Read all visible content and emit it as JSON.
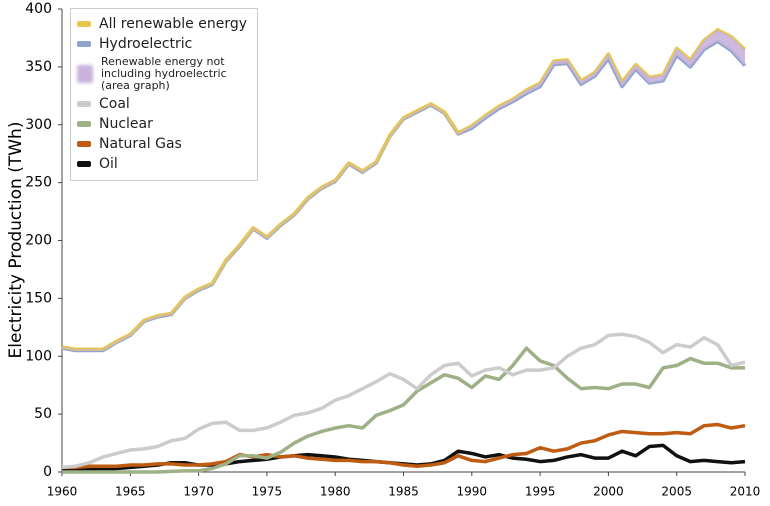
{
  "chart_data": {
    "type": "line",
    "y_label": "Electricity Production (TWh)",
    "x": [
      1960,
      1961,
      1962,
      1963,
      1964,
      1965,
      1966,
      1967,
      1968,
      1969,
      1970,
      1971,
      1972,
      1973,
      1974,
      1975,
      1976,
      1977,
      1978,
      1979,
      1980,
      1981,
      1982,
      1983,
      1984,
      1985,
      1986,
      1987,
      1988,
      1989,
      1990,
      1991,
      1992,
      1993,
      1994,
      1995,
      1996,
      1997,
      1998,
      1999,
      2000,
      2001,
      2002,
      2003,
      2004,
      2005,
      2006,
      2007,
      2008,
      2009,
      2010
    ],
    "xlim": [
      1960,
      2010
    ],
    "xticks": [
      1960,
      1965,
      1970,
      1975,
      1980,
      1985,
      1990,
      1995,
      2000,
      2005,
      2010
    ],
    "ylim": [
      0,
      400
    ],
    "yticks": [
      0,
      50,
      100,
      150,
      200,
      250,
      300,
      350,
      400
    ],
    "legend": "top-left",
    "series": [
      {
        "name": "All renewable energy",
        "color": "#e6c84c",
        "values": [
          108,
          106,
          106,
          106,
          113,
          119,
          131,
          135,
          137,
          151,
          158,
          163,
          183,
          196,
          211,
          203,
          214,
          223,
          237,
          246,
          252,
          267,
          260,
          268,
          291,
          306,
          312,
          318,
          311,
          293,
          299,
          308,
          316,
          322,
          330,
          336,
          355,
          356,
          338,
          345,
          361,
          337,
          352,
          341,
          343,
          366,
          356,
          373,
          382,
          376,
          365
        ]
      },
      {
        "name": "Hydroelectric",
        "color": "#8fa4cc",
        "values": [
          107,
          105,
          105,
          105,
          112,
          118,
          130,
          134,
          136,
          150,
          157,
          162,
          182,
          195,
          210,
          202,
          213,
          222,
          236,
          245,
          251,
          266,
          259,
          267,
          290,
          305,
          311,
          317,
          310,
          292,
          297,
          306,
          314,
          320,
          327,
          333,
          352,
          353,
          335,
          342,
          357,
          333,
          348,
          336,
          338,
          360,
          350,
          365,
          372,
          364,
          351
        ]
      },
      {
        "name": "Renewable energy not including hydroelectric (area graph)",
        "color": "#c9b3dc",
        "type": "area",
        "values": [
          1,
          1,
          1,
          1,
          1,
          1,
          1,
          1,
          1,
          1,
          1,
          1,
          1,
          1,
          1,
          1,
          1,
          1,
          1,
          1,
          1,
          1,
          1,
          1,
          1,
          1,
          1,
          1,
          1,
          1,
          2,
          2,
          2,
          2,
          3,
          3,
          3,
          3,
          3,
          3,
          4,
          4,
          4,
          5,
          5,
          6,
          6,
          8,
          10,
          12,
          14
        ]
      },
      {
        "name": "Coal",
        "color": "#cccccc",
        "values": [
          4,
          5,
          8,
          13,
          16,
          19,
          20,
          22,
          27,
          29,
          37,
          42,
          43,
          36,
          36,
          38,
          43,
          49,
          51,
          55,
          62,
          66,
          72,
          78,
          85,
          80,
          72,
          84,
          92,
          94,
          83,
          88,
          90,
          84,
          88,
          88,
          90,
          100,
          107,
          110,
          118,
          119,
          117,
          112,
          103,
          110,
          108,
          116,
          110,
          92,
          95
        ]
      },
      {
        "name": "Nuclear",
        "color": "#9db086",
        "values": [
          0,
          0,
          0,
          0,
          0,
          0,
          0,
          0,
          0.5,
          1,
          1,
          3,
          7,
          14,
          14,
          12,
          17,
          25,
          31,
          35,
          38,
          40,
          38,
          49,
          53,
          58,
          70,
          77,
          84,
          81,
          73,
          83,
          80,
          92,
          107,
          96,
          92,
          81,
          72,
          73,
          72,
          76,
          76,
          73,
          90,
          92,
          98,
          94,
          94,
          90,
          90
        ]
      },
      {
        "name": "Natural Gas",
        "color": "#c05b12",
        "values": [
          4,
          4,
          5,
          5,
          5,
          6,
          6,
          7,
          7,
          6,
          6,
          7,
          9,
          15,
          13,
          15,
          13,
          14,
          12,
          11,
          10,
          10,
          9,
          9,
          8,
          6,
          5,
          6,
          8,
          14,
          10,
          9,
          12,
          15,
          16,
          21,
          18,
          20,
          25,
          27,
          32,
          35,
          34,
          33,
          33,
          34,
          33,
          40,
          41,
          38,
          40
        ]
      },
      {
        "name": "Oil",
        "color": "#111111",
        "values": [
          2,
          2,
          2,
          2,
          3,
          4,
          5,
          6,
          8,
          8,
          6,
          6,
          7,
          9,
          10,
          11,
          13,
          14,
          15,
          14,
          13,
          11,
          10,
          9,
          8,
          7,
          6,
          7,
          10,
          18,
          16,
          13,
          15,
          12,
          11,
          9,
          10,
          13,
          15,
          12,
          12,
          18,
          14,
          22,
          23,
          14,
          9,
          10,
          9,
          8,
          9
        ]
      }
    ]
  }
}
